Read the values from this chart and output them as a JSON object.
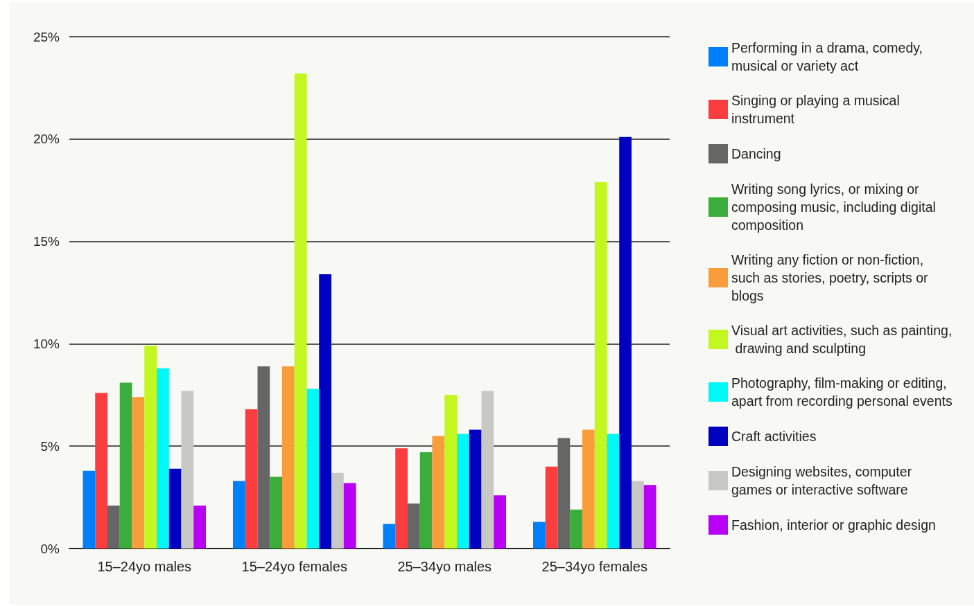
{
  "chart_data": {
    "type": "bar",
    "categories": [
      "15–24yo males",
      "15–24yo females",
      "25–34yo males",
      "25–34yo females"
    ],
    "series": [
      {
        "name": "Performing in a drama, comedy, musical or variety act",
        "color": "#0080f8",
        "values": [
          3.8,
          3.3,
          1.2,
          1.3
        ]
      },
      {
        "name": "Singing or playing a musical instrument",
        "color": "#fc3d3f",
        "values": [
          7.6,
          6.8,
          4.9,
          4.0
        ]
      },
      {
        "name": "Dancing",
        "color": "#666666",
        "values": [
          2.1,
          8.9,
          2.2,
          5.4
        ]
      },
      {
        "name": "Writing song lyrics, or mixing or composing music, including digital composition",
        "color": "#3aad3a",
        "values": [
          8.1,
          3.5,
          4.7,
          1.9
        ]
      },
      {
        "name": "Writing any fiction or non-fiction, such as stories, poetry, scripts or blogs",
        "color": "#f99d3a",
        "values": [
          7.4,
          8.9,
          5.5,
          5.8
        ]
      },
      {
        "name": "Visual art activities, such as painting, drawing and sculpting",
        "color": "#c2f820",
        "values": [
          9.9,
          23.2,
          7.5,
          17.9
        ]
      },
      {
        "name": "Photography, film-making or editing, apart from recording personal events",
        "color": "#00f8f6",
        "values": [
          8.8,
          7.8,
          5.6,
          5.6
        ]
      },
      {
        "name": "Craft activities",
        "color": "#0000c0",
        "values": [
          3.9,
          13.4,
          5.8,
          20.1
        ]
      },
      {
        "name": "Designing websites, computer games or interactive software",
        "color": "#c8c8c4",
        "values": [
          7.7,
          3.7,
          7.7,
          3.3
        ]
      },
      {
        "name": "Fashion, interior or graphic design",
        "color": "#b800f6",
        "values": [
          2.1,
          3.2,
          2.6,
          3.1
        ]
      }
    ],
    "ylim": [
      0,
      25
    ],
    "yticks": [
      {
        "value": 0,
        "label": "0%"
      },
      {
        "value": 5,
        "label": "5%"
      },
      {
        "value": 10,
        "label": "10%"
      },
      {
        "value": 15,
        "label": "15%"
      },
      {
        "value": 20,
        "label": "20%"
      },
      {
        "value": 25,
        "label": "25%"
      }
    ],
    "grid": "y",
    "legend": "right"
  }
}
